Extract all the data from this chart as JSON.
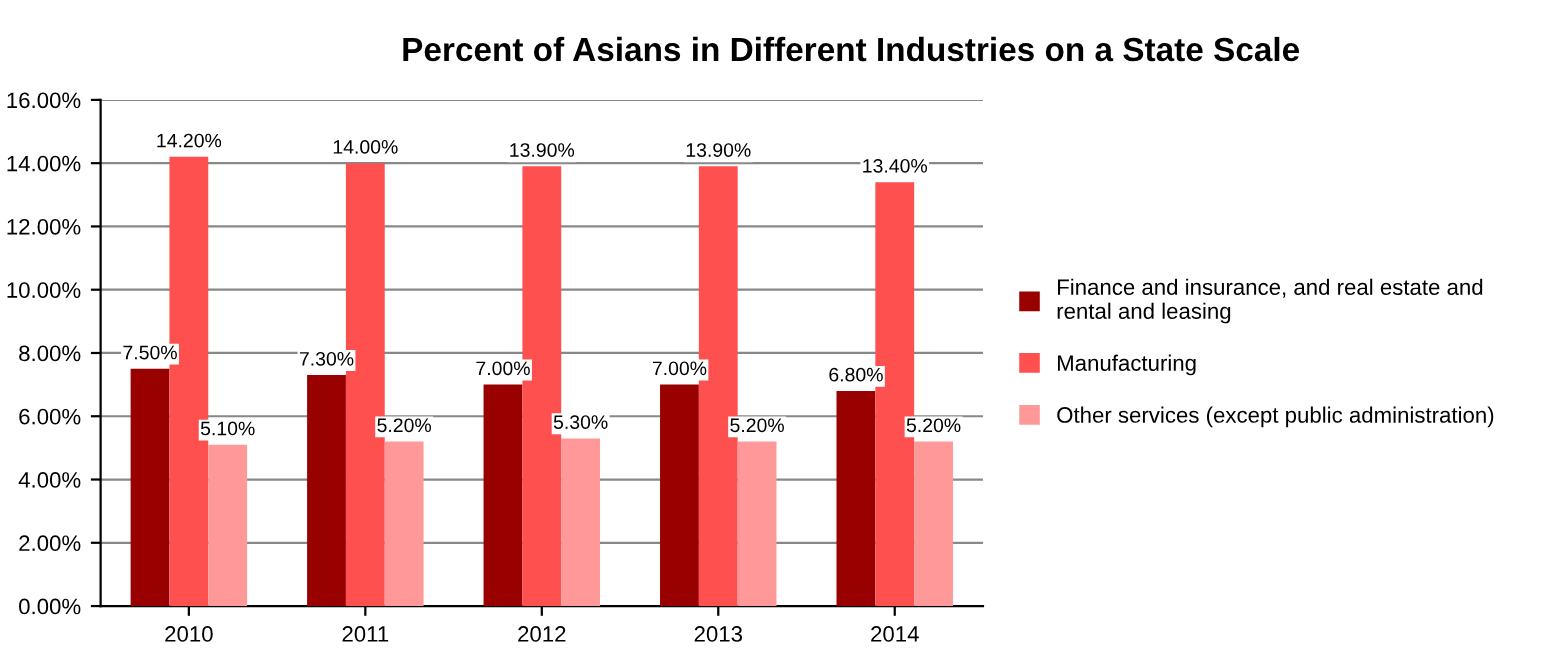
{
  "chart_data": {
    "type": "bar",
    "title": "Percent of Asians in Different Industries on a State Scale",
    "categories": [
      "2010",
      "2011",
      "2012",
      "2013",
      "2014"
    ],
    "series": [
      {
        "name": "Finance and insurance, and real estate and rental and leasing",
        "color": "#990000",
        "values": [
          7.5,
          7.3,
          7.0,
          7.0,
          6.8
        ],
        "value_labels": [
          "7.50%",
          "7.30%",
          "7.00%",
          "7.00%",
          "6.80%"
        ]
      },
      {
        "name": "Manufacturing",
        "color": "#ff5050",
        "values": [
          14.2,
          14.0,
          13.9,
          13.9,
          13.4
        ],
        "value_labels": [
          "14.20%",
          "14.00%",
          "13.90%",
          "13.90%",
          "13.40%"
        ]
      },
      {
        "name": "Other services (except public administration)",
        "color": "#ff9999",
        "values": [
          5.1,
          5.2,
          5.3,
          5.2,
          5.2
        ],
        "value_labels": [
          "5.10%",
          "5.20%",
          "5.30%",
          "5.20%",
          "5.20%"
        ]
      }
    ],
    "ylim": [
      0,
      16
    ],
    "yticks": [
      {
        "value": 0,
        "label": "0.00%"
      },
      {
        "value": 2,
        "label": "2.00%"
      },
      {
        "value": 4,
        "label": "4.00%"
      },
      {
        "value": 6,
        "label": "6.00%"
      },
      {
        "value": 8,
        "label": "8.00%"
      },
      {
        "value": 10,
        "label": "10.00%"
      },
      {
        "value": 12,
        "label": "12.00%"
      },
      {
        "value": 14,
        "label": "14.00%"
      },
      {
        "value": 16,
        "label": "16.00%"
      }
    ],
    "grid": "y",
    "legend": "right"
  }
}
